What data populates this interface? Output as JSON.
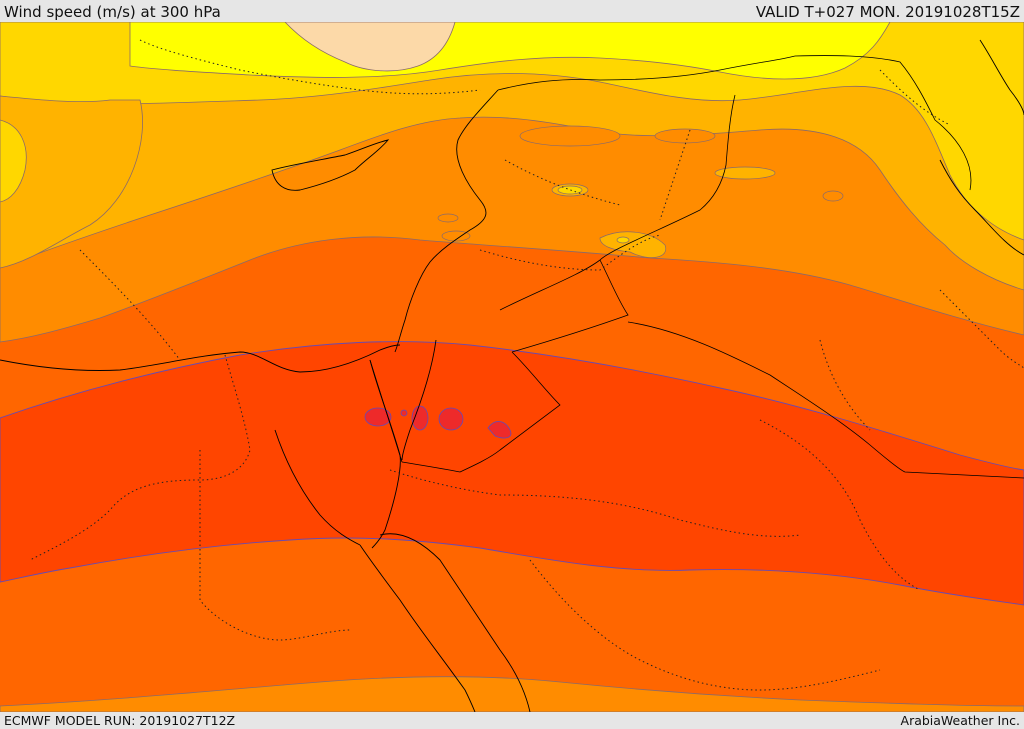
{
  "header": {
    "title": "Wind speed (m/s) at 300 hPa",
    "valid_time": "VALID T+027 MON. 20191028T15Z"
  },
  "footer": {
    "model_run": "ECMWF MODEL RUN: 20191027T12Z",
    "credit": "ArabiaWeather Inc."
  },
  "map": {
    "field": "wind speed at 300 hPa",
    "palette": {
      "band_peach": "#fcd9a8",
      "band_yellow": "#ffff00",
      "band_gold": "#ffd700",
      "band_amber": "#ffb300",
      "band_orange": "#ff8c00",
      "band_dark_orange": "#ff6600",
      "band_red_orange": "#ff4500",
      "band_red": "#ee2a2a",
      "contour_line": "#8a6a6a",
      "coastline": "#000000",
      "border_dotted": "#222222"
    }
  }
}
